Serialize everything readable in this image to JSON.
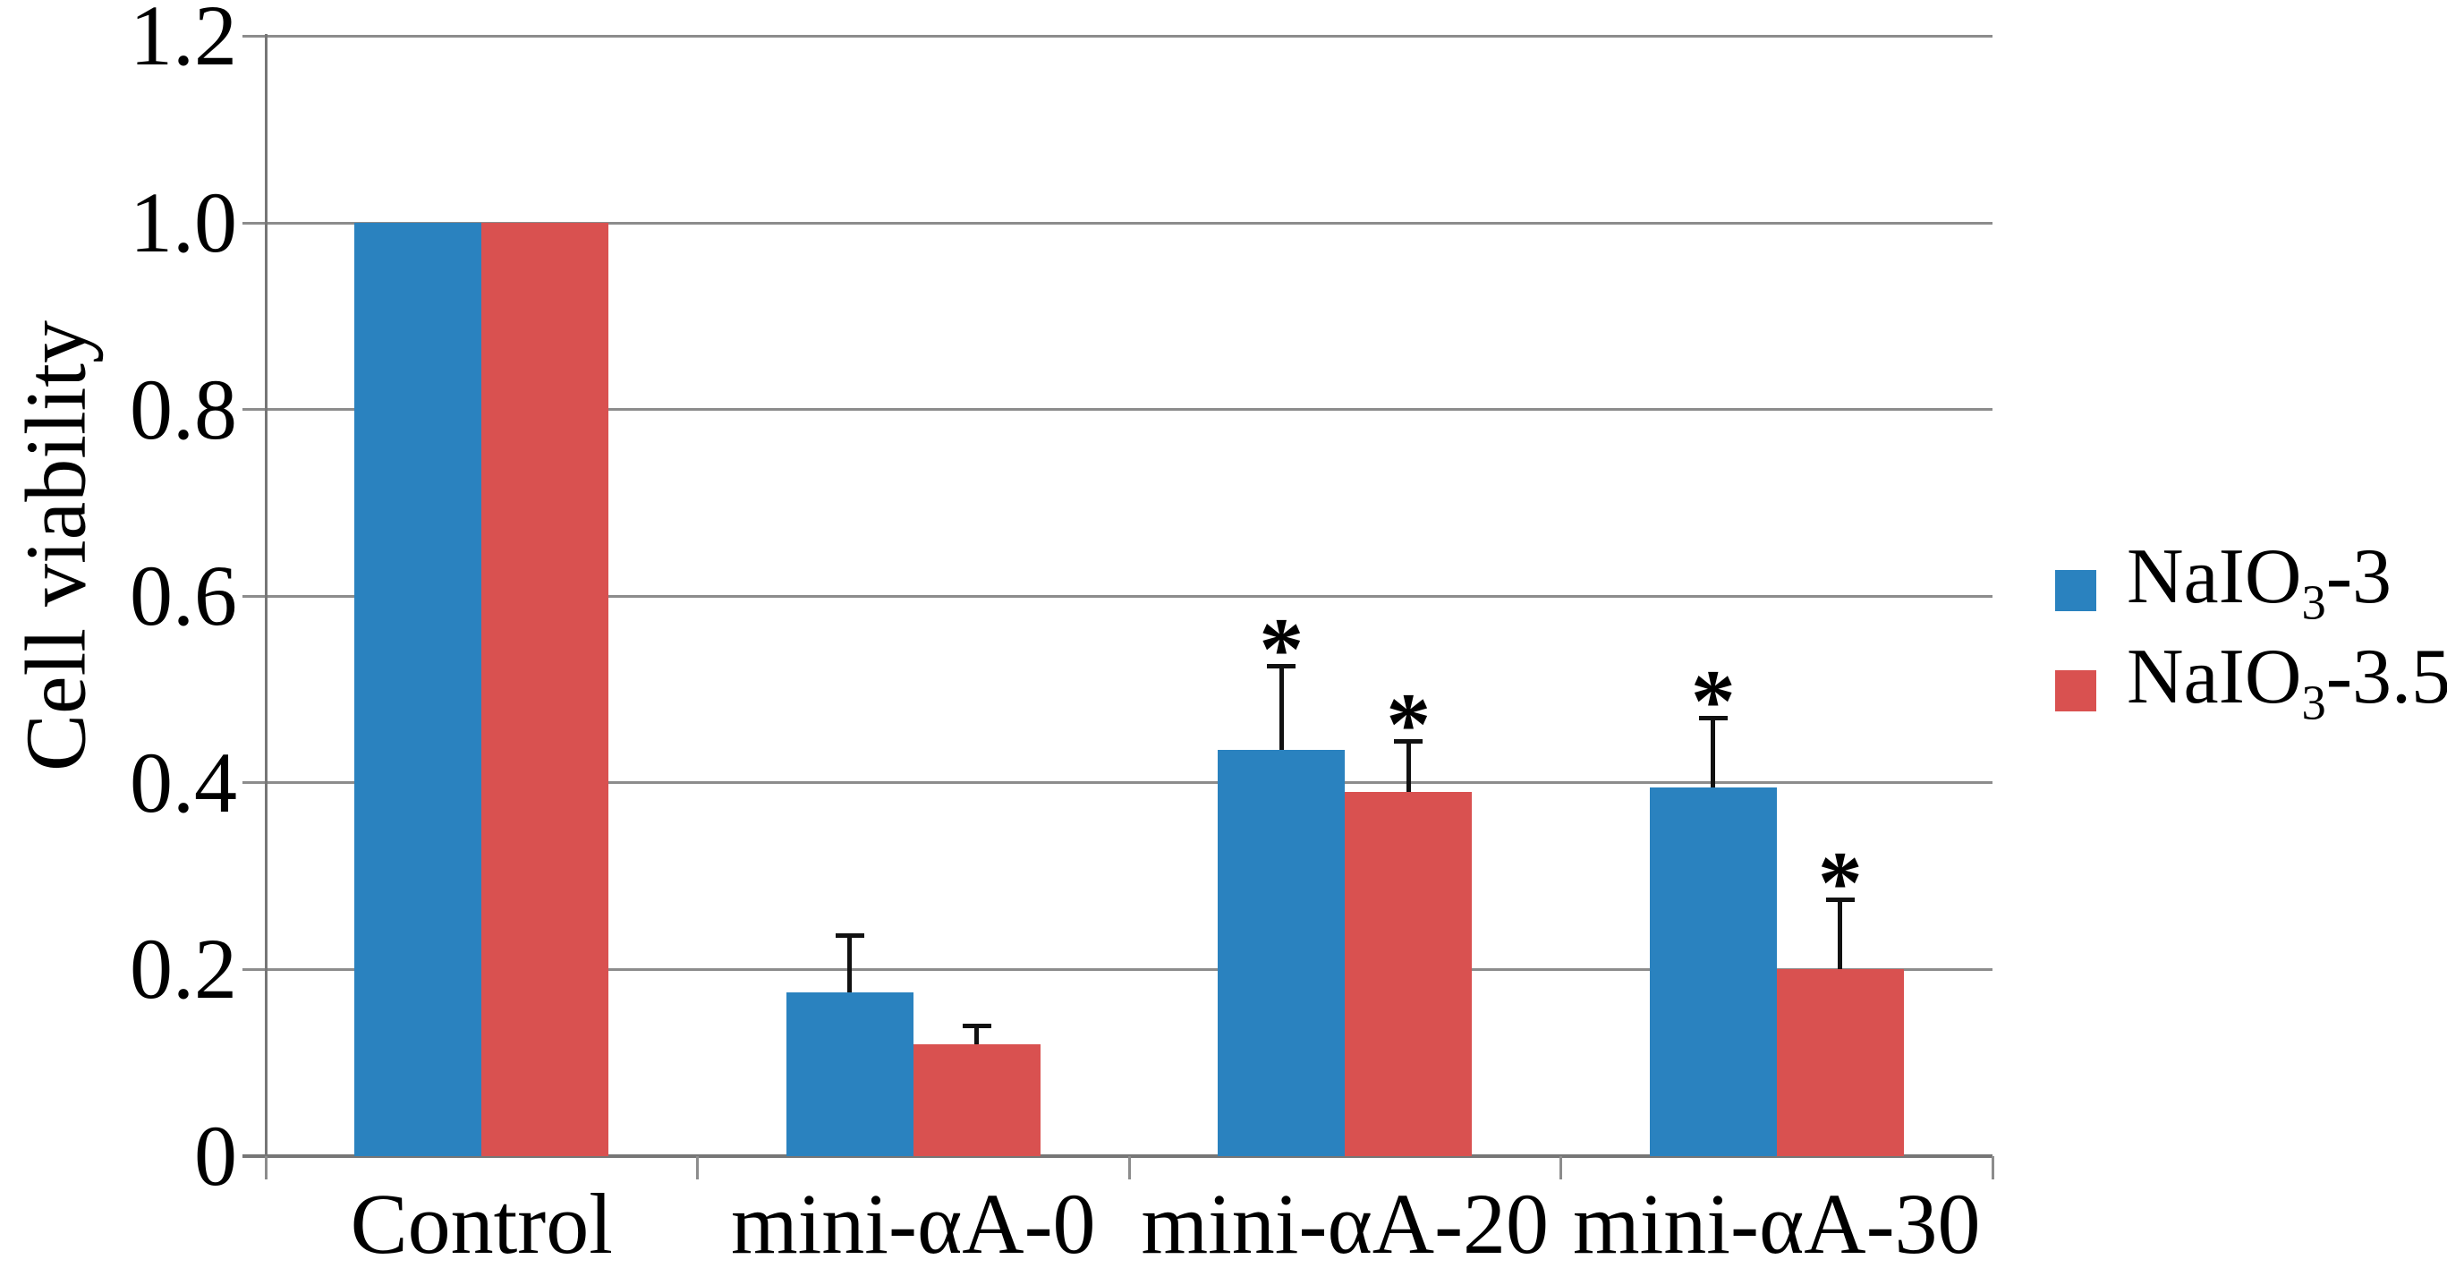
{
  "chart_data": {
    "type": "bar",
    "title": "",
    "ylabel": "Cell viability",
    "xlabel": "",
    "categories": [
      "Control",
      "mini-αA-0",
      "mini-αA-20",
      "mini-αA-30"
    ],
    "series": [
      {
        "name": "NaIO3-3",
        "label_prefix": "NaIO",
        "label_sub": "3",
        "label_suffix": "-3",
        "color": "#2A82BF",
        "values": [
          1.0,
          0.175,
          0.435,
          0.395
        ],
        "errors": [
          0,
          0.062,
          0.09,
          0.075
        ],
        "significant": [
          false,
          false,
          true,
          true
        ]
      },
      {
        "name": "NaIO3-3.5",
        "label_prefix": "NaIO",
        "label_sub": "3",
        "label_suffix": "-3.5",
        "color": "#D95150",
        "values": [
          1.0,
          0.12,
          0.39,
          0.2
        ],
        "errors": [
          0,
          0.02,
          0.055,
          0.075
        ],
        "significant": [
          false,
          false,
          true,
          true
        ]
      }
    ],
    "yticks": [
      {
        "label": "1.2",
        "value": 1.2
      },
      {
        "label": "1.0",
        "value": 1.0
      },
      {
        "label": "0.8",
        "value": 0.8
      },
      {
        "label": "0.6",
        "value": 0.6
      },
      {
        "label": "0.4",
        "value": 0.4
      },
      {
        "label": "0.2",
        "value": 0.2
      },
      {
        "label": "0",
        "value": 0.0
      }
    ],
    "ylim": [
      0,
      1.2
    ],
    "grid": true,
    "legend_position": "right",
    "significance_marker": "*"
  },
  "colors": {
    "series_blue": "#2A82BF",
    "series_red": "#D95150",
    "gridline": "#8C8C8C",
    "axis": "#767676",
    "error_bar": "#111111",
    "text": "#000000"
  }
}
